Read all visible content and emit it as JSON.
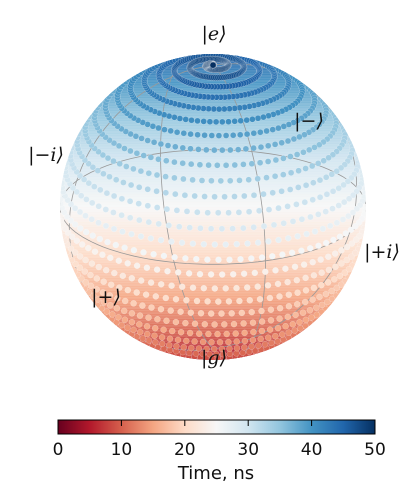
{
  "chart_data": {
    "type": "scatter",
    "subtype": "bloch-sphere-trajectory",
    "title": "",
    "trajectory": {
      "description_units": "polar angle theta in degrees (0 = |e> top, 180 = |g> bottom) vs time",
      "t_range_ns": [
        0,
        50
      ],
      "theta_start_deg": 180,
      "theta_end_deg": 0,
      "winding_turns": 30
    },
    "state_labels": [
      {
        "id": "e",
        "text": "|e⟩"
      },
      {
        "id": "g",
        "text": "|g⟩"
      },
      {
        "id": "plus",
        "text": "|+⟩"
      },
      {
        "id": "minus",
        "text": "|−⟩"
      },
      {
        "id": "plus_i",
        "text": "|+i⟩"
      },
      {
        "id": "minus_i",
        "text": "|−i⟩"
      }
    ],
    "colorbar": {
      "label": "Time, ns",
      "min": 0,
      "max": 50,
      "ticks": [
        0,
        10,
        20,
        30,
        40,
        50
      ],
      "colormap": "RdBu",
      "colors": [
        "#67001f",
        "#b2182b",
        "#d6604d",
        "#f4a582",
        "#fddbc7",
        "#f7f7f7",
        "#d1e5f0",
        "#92c5de",
        "#4393c3",
        "#2166ac",
        "#053061"
      ]
    }
  }
}
